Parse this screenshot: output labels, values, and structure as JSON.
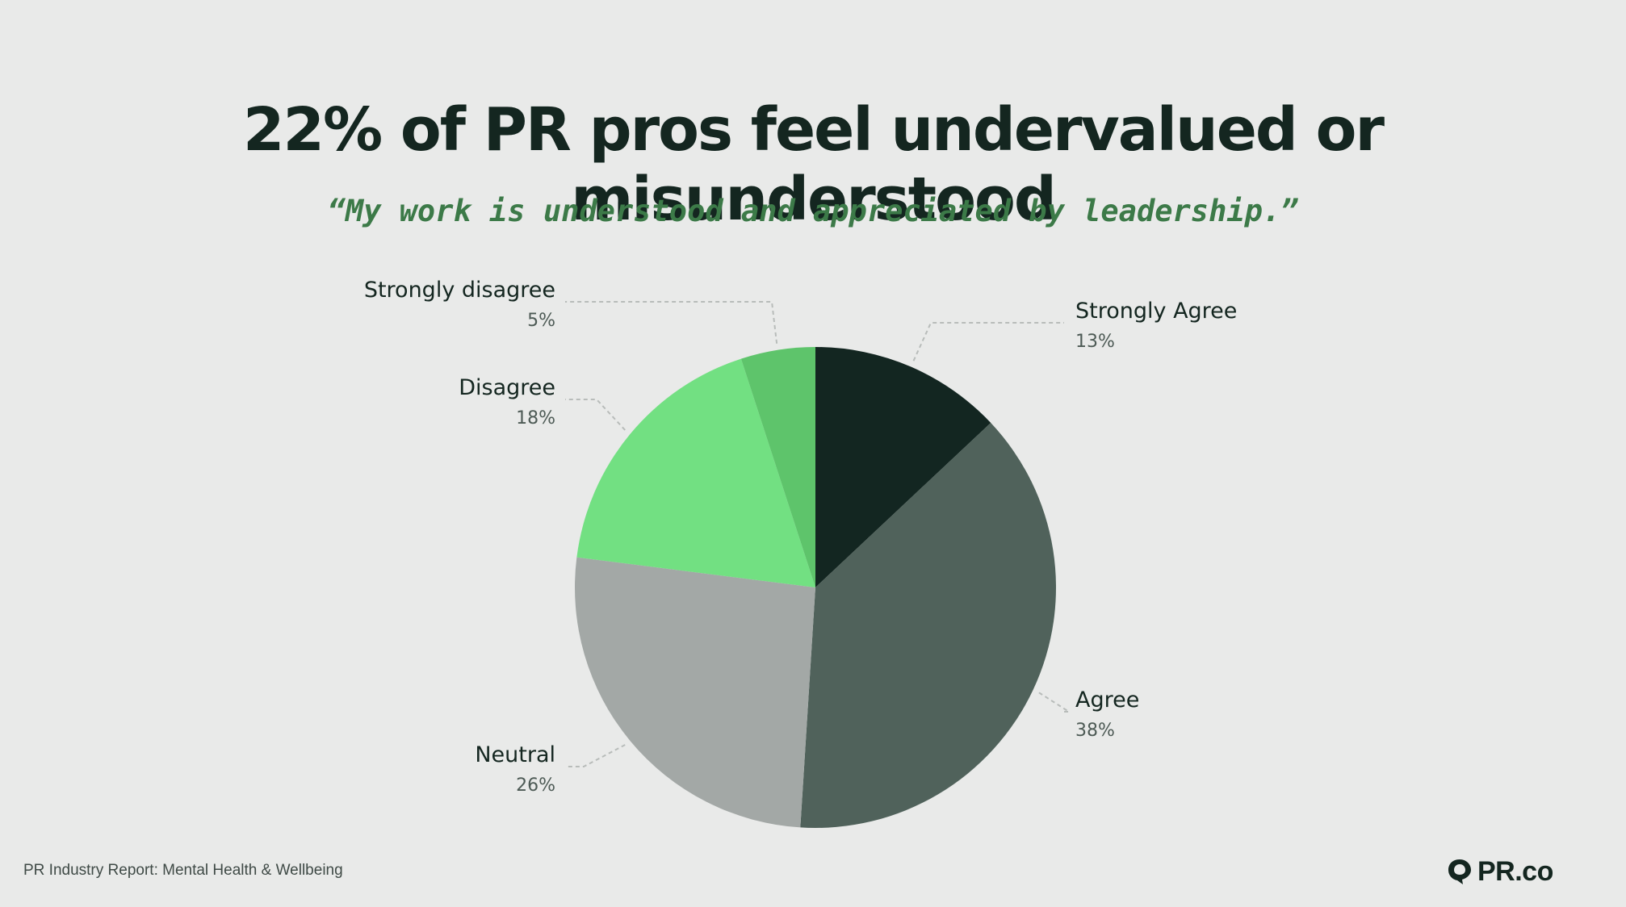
{
  "header": {
    "title": "22% of PR pros feel undervalued or misunderstood",
    "subtitle": "“My work is understood and appreciated by leadership.”"
  },
  "chart_data": {
    "type": "pie",
    "start": "top, clockwise",
    "slices": [
      {
        "label": "Strongly Agree",
        "value": 13,
        "value_label": "13%",
        "color": "#132621"
      },
      {
        "label": "Agree",
        "value": 38,
        "value_label": "38%",
        "color": "#50625b"
      },
      {
        "label": "Neutral",
        "value": 26,
        "value_label": "26%",
        "color": "#a3a8a6"
      },
      {
        "label": "Disagree",
        "value": 18,
        "value_label": "18%",
        "color": "#72e082"
      },
      {
        "label": "Strongly disagree",
        "value": 5,
        "value_label": "5%",
        "color": "#5ec46b"
      }
    ]
  },
  "footer": {
    "source": "PR Industry Report: Mental Health & Wellbeing",
    "logo_text": "PR.co",
    "logo_icon": "speech-bubble-icon"
  }
}
